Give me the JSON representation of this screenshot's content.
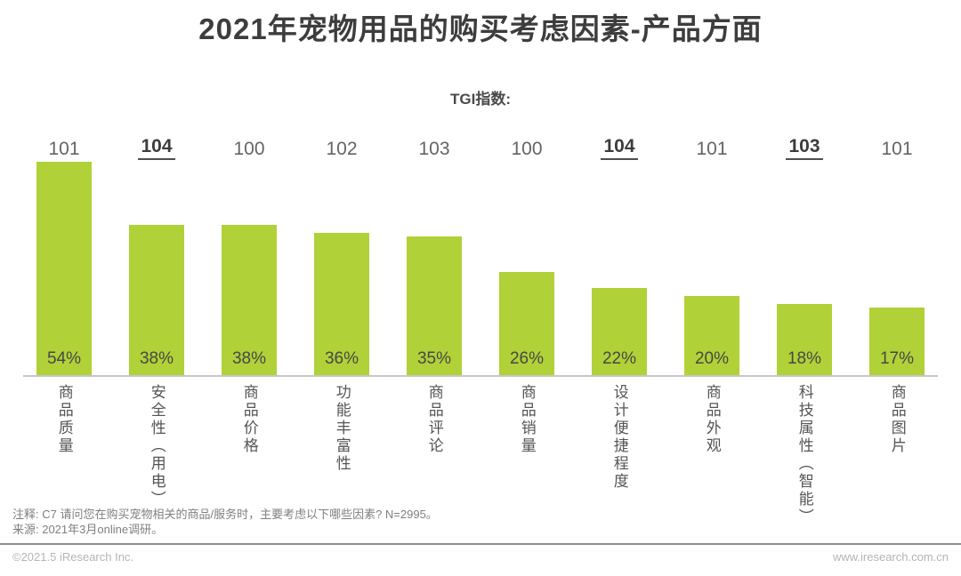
{
  "page": {
    "title": "2021年宠物用品的购买考虑因素-产品方面",
    "tgi_label": "TGI指数:"
  },
  "chart_data": {
    "type": "bar",
    "title": "2021年宠物用品的购买考虑因素-产品方面",
    "categories": [
      "商品质量",
      "安全性（用电）",
      "商品价格",
      "功能丰富性",
      "商品评论",
      "商品销量",
      "设计便捷程度",
      "商品外观",
      "科技属性（智能）",
      "商品图片"
    ],
    "series": [
      {
        "name": "percentage",
        "unit": "%",
        "values": [
          54,
          38,
          38,
          36,
          35,
          26,
          22,
          20,
          18,
          17
        ]
      },
      {
        "name": "tgi",
        "label": "TGI指数:",
        "values": [
          101,
          104,
          100,
          102,
          103,
          100,
          104,
          101,
          103,
          101
        ],
        "emphasized": [
          false,
          true,
          false,
          false,
          false,
          false,
          true,
          false,
          true,
          false
        ]
      }
    ],
    "ylim": [
      0,
      60
    ],
    "bar_color": "#b1d138",
    "grid": false,
    "legend_position": "none"
  },
  "footnotes": {
    "note": "注释: C7 请问您在购买宠物相关的商品/服务时，主要考虑以下哪些因素? N=2995。",
    "source": "来源: 2021年3月online调研。"
  },
  "footer": {
    "copyright": "©2021.5 iResearch Inc.",
    "website": "www.iresearch.com.cn"
  }
}
